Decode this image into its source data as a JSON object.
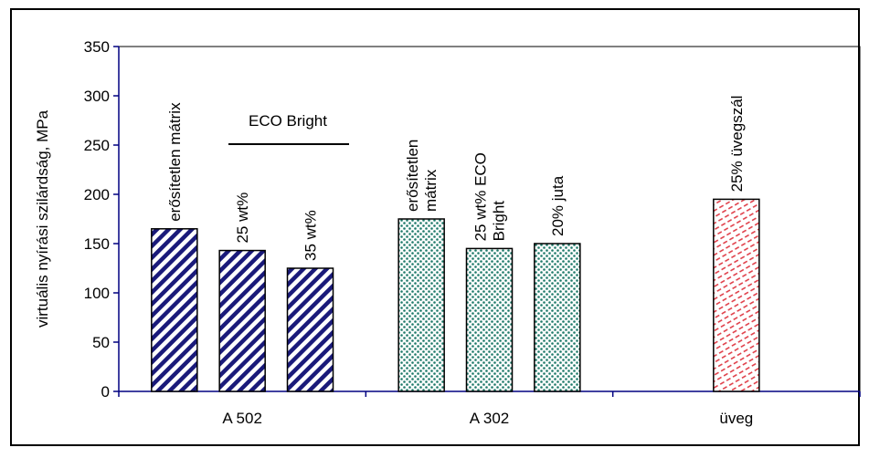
{
  "chart_data": {
    "type": "bar",
    "ylabel": "virtuális nyírási szilárdság, MPa",
    "ylim": [
      0,
      350
    ],
    "yticks": [
      0,
      50,
      100,
      150,
      200,
      250,
      300,
      350
    ],
    "groups": [
      "A 502",
      "A 302",
      "üveg"
    ],
    "bars": [
      {
        "group": "A 502",
        "label": [
          "erősítetlen mátrix"
        ],
        "value": 165,
        "pattern": "diagonal-stripes",
        "color": "#1a1a7a"
      },
      {
        "group": "A 502",
        "label": [
          "25 wt%"
        ],
        "value": 143,
        "pattern": "diagonal-stripes",
        "color": "#1a1a7a"
      },
      {
        "group": "A 502",
        "label": [
          "35 wt%"
        ],
        "value": 125,
        "pattern": "diagonal-stripes",
        "color": "#1a1a7a"
      },
      {
        "group": "A 302",
        "label": [
          "erősítetlen",
          "mátrix"
        ],
        "value": 175,
        "pattern": "dots",
        "color": "#1f7a6a"
      },
      {
        "group": "A 302",
        "label": [
          "25 wt% ECO",
          "Bright"
        ],
        "value": 145,
        "pattern": "dots",
        "color": "#1f7a6a"
      },
      {
        "group": "A 302",
        "label": [
          "20% juta"
        ],
        "value": 150,
        "pattern": "dots",
        "color": "#1f7a6a"
      },
      {
        "group": "üveg",
        "label": [
          "25% üvegszál"
        ],
        "value": 195,
        "pattern": "dashes",
        "color": "#e0404a"
      }
    ],
    "annotation": "ECO Bright",
    "grid": false,
    "legend": "none",
    "colors": {
      "axis": "#000080",
      "frame": "#000000"
    }
  }
}
